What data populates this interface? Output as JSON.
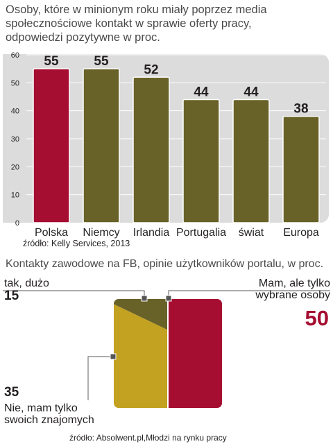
{
  "chart_data": [
    {
      "type": "bar",
      "title": "Osoby, które w minionym roku miały poprzez media społecznościowe kontakt w sprawie oferty pracy, odpowiedzi pozytywne w proc.",
      "categories": [
        "Polska",
        "Niemcy",
        "Irlandia",
        "Portugalia",
        "świat",
        "Europa"
      ],
      "values": [
        55,
        55,
        52,
        44,
        44,
        38
      ],
      "highlight_index": 0,
      "ylim": [
        0,
        60
      ],
      "yticks": [
        0,
        10,
        20,
        30,
        40,
        50,
        60
      ],
      "grid": true,
      "source": "źródło: Kelly Services, 2013",
      "colors": {
        "highlight": "#a50d31",
        "default": "#686229"
      }
    },
    {
      "type": "pie",
      "title": "Kontakty zawodowe na FB, opinie użytkowników portalu, w proc.",
      "slices": [
        {
          "label_lines": [
            "Mam, ale tylko",
            "wybrane osoby"
          ],
          "value": 50,
          "color": "#a50d31"
        },
        {
          "label_lines": [
            "tak, dużo"
          ],
          "value": 15,
          "color": "#686229"
        },
        {
          "label_lines": [
            "Nie, mam tylko",
            "swoich znajomych"
          ],
          "value": 35,
          "color": "#c3a121"
        }
      ],
      "source": "źródło: Absolwent.pl,Młodzi na rynku pracy"
    }
  ]
}
